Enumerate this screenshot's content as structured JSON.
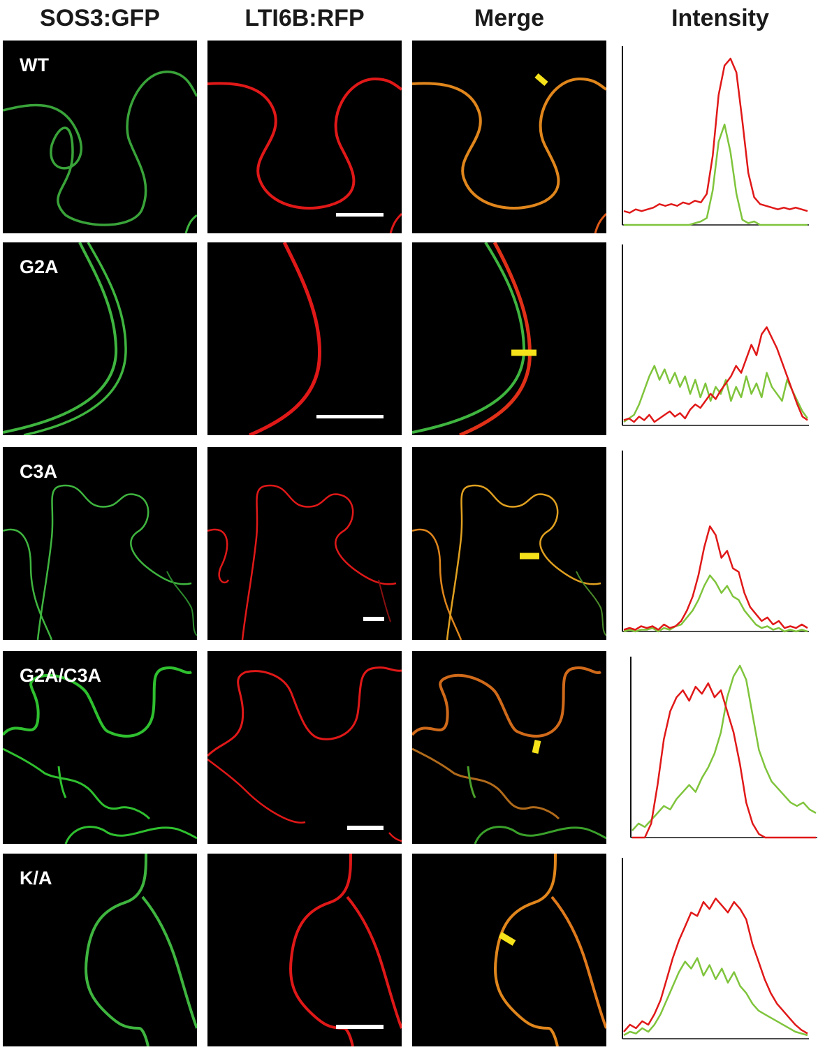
{
  "columns": {
    "gfp": "SOS3:GFP",
    "rfp": "LTI6B:RFP",
    "merge": "Merge",
    "intensity": "Intensity"
  },
  "rows": [
    {
      "label": "WT"
    },
    {
      "label": "G2A"
    },
    {
      "label": "C3A"
    },
    {
      "label": "G2A/C3A"
    },
    {
      "label": "K/A"
    }
  ],
  "colors": {
    "gfp": "#3fb53f",
    "rfp": "#e01818",
    "merge": "#e0861c",
    "plot_red": "#e01818",
    "plot_green": "#7fc43c",
    "marker": "#f6e21a"
  },
  "chart_data": [
    {
      "type": "line",
      "row": "WT",
      "series": [
        {
          "color": "red",
          "values": [
            8,
            7,
            9,
            8,
            9,
            10,
            12,
            11,
            12,
            11,
            13,
            12,
            14,
            13,
            18,
            40,
            75,
            92,
            96,
            88,
            60,
            30,
            16,
            12,
            11,
            10,
            9,
            10,
            9,
            10,
            9,
            8
          ]
        },
        {
          "color": "green",
          "values": [
            0,
            0,
            0,
            0,
            0,
            0,
            0,
            0,
            0,
            0,
            0,
            0,
            1,
            2,
            4,
            20,
            48,
            58,
            42,
            18,
            3,
            1,
            2,
            0,
            0,
            0,
            0,
            0,
            0,
            0,
            0,
            0
          ]
        }
      ]
    },
    {
      "type": "line",
      "row": "G2A",
      "series": [
        {
          "color": "red",
          "values": [
            3,
            4,
            2,
            5,
            3,
            6,
            2,
            4,
            6,
            8,
            5,
            7,
            4,
            9,
            12,
            10,
            14,
            18,
            15,
            20,
            24,
            28,
            34,
            30,
            38,
            46,
            40,
            52,
            56,
            50,
            44,
            36,
            28,
            20,
            12,
            5,
            3
          ]
        },
        {
          "color": "green",
          "values": [
            2,
            4,
            6,
            12,
            20,
            28,
            34,
            26,
            32,
            24,
            30,
            22,
            28,
            18,
            26,
            16,
            24,
            14,
            22,
            18,
            26,
            14,
            22,
            16,
            28,
            18,
            24,
            16,
            30,
            22,
            18,
            14,
            26,
            20,
            14,
            8,
            4
          ]
        }
      ]
    },
    {
      "type": "line",
      "row": "C3A",
      "series": [
        {
          "color": "red",
          "values": [
            1,
            2,
            1,
            3,
            2,
            3,
            1,
            4,
            2,
            3,
            6,
            12,
            20,
            32,
            48,
            60,
            55,
            42,
            46,
            36,
            34,
            22,
            14,
            10,
            6,
            8,
            4,
            6,
            2,
            3,
            2,
            4,
            2
          ]
        },
        {
          "color": "green",
          "values": [
            0,
            1,
            0,
            1,
            1,
            2,
            0,
            2,
            1,
            3,
            4,
            8,
            12,
            18,
            26,
            32,
            28,
            22,
            26,
            20,
            18,
            12,
            8,
            4,
            2,
            3,
            1,
            2,
            0,
            1,
            0,
            1,
            0
          ]
        }
      ]
    },
    {
      "type": "line",
      "row": "G2A/C3A",
      "series": [
        {
          "color": "red",
          "values": [
            0,
            0,
            0,
            8,
            30,
            56,
            72,
            80,
            84,
            78,
            86,
            82,
            88,
            80,
            84,
            72,
            60,
            42,
            20,
            8,
            2,
            0,
            0,
            0,
            0,
            0,
            0,
            0,
            0,
            0
          ]
        },
        {
          "color": "green",
          "values": [
            4,
            8,
            6,
            10,
            14,
            18,
            16,
            22,
            26,
            30,
            26,
            34,
            40,
            48,
            60,
            80,
            92,
            98,
            90,
            70,
            50,
            40,
            32,
            28,
            24,
            20,
            18,
            20,
            16,
            14
          ]
        }
      ]
    },
    {
      "type": "line",
      "row": "K/A",
      "series": [
        {
          "color": "red",
          "values": [
            4,
            8,
            6,
            10,
            8,
            14,
            22,
            34,
            46,
            56,
            64,
            72,
            70,
            78,
            74,
            80,
            76,
            72,
            78,
            74,
            68,
            54,
            44,
            34,
            26,
            20,
            16,
            12,
            8,
            5,
            3
          ]
        },
        {
          "color": "green",
          "values": [
            2,
            4,
            3,
            6,
            4,
            8,
            14,
            22,
            30,
            38,
            44,
            40,
            46,
            36,
            42,
            34,
            40,
            32,
            38,
            30,
            26,
            20,
            16,
            14,
            12,
            10,
            8,
            6,
            4,
            3,
            2
          ]
        }
      ]
    }
  ]
}
